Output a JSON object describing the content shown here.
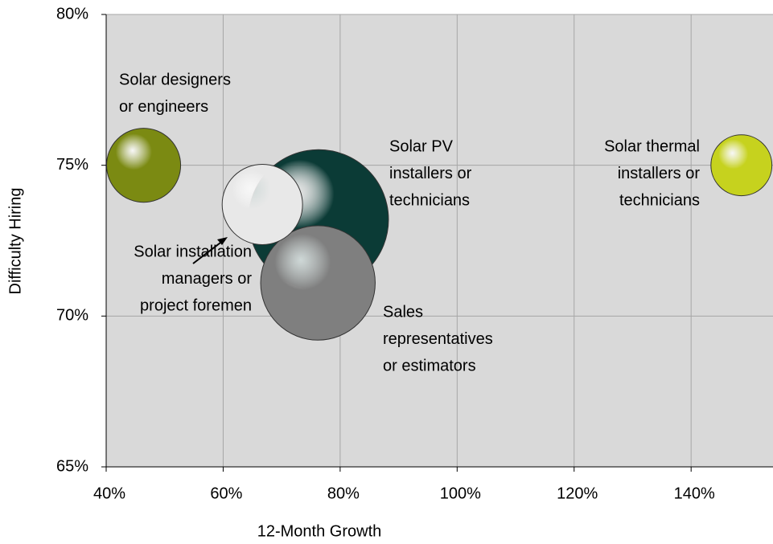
{
  "chart_data": {
    "type": "bubble",
    "xlabel": "12-Month Growth",
    "ylabel": "Difficulty Hiring",
    "xlim": [
      40,
      154
    ],
    "ylim": [
      65,
      80
    ],
    "xticks": [
      {
        "value": 40,
        "label": "40%"
      },
      {
        "value": 60,
        "label": "60%"
      },
      {
        "value": 80,
        "label": "80%"
      },
      {
        "value": 100,
        "label": "100%"
      },
      {
        "value": 120,
        "label": "120%"
      },
      {
        "value": 140,
        "label": "140%"
      }
    ],
    "yticks": [
      {
        "value": 65,
        "label": "65%"
      },
      {
        "value": 70,
        "label": "70%"
      },
      {
        "value": 75,
        "label": "75%"
      },
      {
        "value": 80,
        "label": "80%"
      }
    ],
    "grid": true,
    "series": [
      {
        "name": [
          "Solar designers",
          "or engineers"
        ],
        "color": "#7b8a12",
        "x": [
          46.4
        ],
        "values": [
          75.0
        ],
        "size": [
          28
        ]
      },
      {
        "name": [
          "Solar PV",
          "installers or",
          "technicians"
        ],
        "color": "#0b3b36",
        "x": [
          76.3
        ],
        "values": [
          73.2
        ],
        "size": [
          100
        ]
      },
      {
        "name": [
          "Sales",
          "representatives",
          "or estimators"
        ],
        "color": "#7f7f7f",
        "x": [
          76.2
        ],
        "values": [
          71.1
        ],
        "size": [
          67
        ]
      },
      {
        "name": [
          "Solar installation",
          "managers or",
          "project foremen"
        ],
        "color": "#e8e8e8",
        "x": [
          66.7
        ],
        "values": [
          73.7
        ],
        "size": [
          33
        ]
      },
      {
        "name": [
          "Solar thermal",
          "installers or",
          "technicians"
        ],
        "color": "#c6d21e",
        "x": [
          148.6
        ],
        "values": [
          75.0
        ],
        "size": [
          19
        ]
      }
    ]
  }
}
